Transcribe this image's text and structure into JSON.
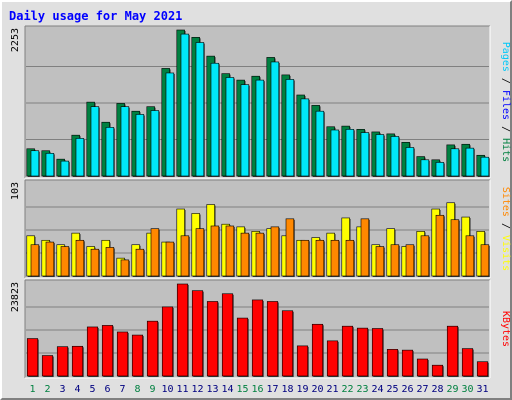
{
  "chart_data": {
    "title": "Daily usage for May 2021",
    "days": [
      "1",
      "2",
      "3",
      "4",
      "5",
      "6",
      "7",
      "8",
      "9",
      "10",
      "11",
      "12",
      "13",
      "14",
      "15",
      "16",
      "17",
      "18",
      "19",
      "20",
      "21",
      "22",
      "23",
      "24",
      "25",
      "26",
      "27",
      "28",
      "29",
      "30",
      "31"
    ],
    "weekend_days": [
      "1",
      "2",
      "8",
      "9",
      "15",
      "16",
      "22",
      "23",
      "29",
      "30"
    ],
    "colors": {
      "hits": "#008040",
      "files": "#00c8f8",
      "pages": "#00e8f8",
      "visits": "#ffff00",
      "sites": "#ff8800",
      "kbytes": "#ff0000",
      "weekday_label": "#000080",
      "weekend_label": "#008040",
      "title": "#0000ff",
      "panel_bg": "#c0c0c0"
    },
    "panels": [
      {
        "type": "bar",
        "max_label": "2253",
        "ylim": [
          0,
          2253
        ],
        "legend": [
          {
            "text": "Pages",
            "color": "#00c8f8"
          },
          {
            "text": " / ",
            "color": "#000000"
          },
          {
            "text": "Files",
            "color": "#0000ff"
          },
          {
            "text": " / ",
            "color": "#000000"
          },
          {
            "text": "Hits",
            "color": "#008040"
          }
        ],
        "series": [
          {
            "name": "Hits",
            "color": "#008040",
            "values": [
              420,
              390,
              260,
              630,
              1140,
              830,
              1120,
              1000,
              1070,
              1660,
              2253,
              2140,
              1850,
              1580,
              1480,
              1540,
              1830,
              1560,
              1250,
              1090,
              760,
              770,
              720,
              680,
              650,
              520,
              300,
              250,
              480,
              490,
              320
            ]
          },
          {
            "name": "Files",
            "color": "#00e8f8",
            "values": [
              390,
              350,
              230,
              580,
              1070,
              750,
              1070,
              950,
              1010,
              1590,
              2190,
              2060,
              1740,
              1520,
              1410,
              1480,
              1760,
              1490,
              1190,
              1000,
              710,
              720,
              670,
              640,
              610,
              440,
              250,
              210,
              420,
              430,
              290
            ]
          }
        ]
      },
      {
        "type": "bar",
        "max_label": "103",
        "ylim": [
          0,
          103
        ],
        "legend": [
          {
            "text": "Sites",
            "color": "#ff8800"
          },
          {
            "text": " / ",
            "color": "#000000"
          },
          {
            "text": "Visits",
            "color": "#ffff00"
          }
        ],
        "series": [
          {
            "name": "Visits",
            "color": "#ffff00",
            "values": [
              45,
              40,
              35,
              48,
              33,
              40,
              20,
              35,
              48,
              38,
              75,
              70,
              80,
              58,
              55,
              50,
              53,
              45,
              40,
              43,
              48,
              65,
              55,
              35,
              53,
              33,
              50,
              75,
              82,
              66,
              50
            ]
          },
          {
            "name": "Sites",
            "color": "#ff8800",
            "values": [
              35,
              38,
              33,
              40,
              30,
              32,
              18,
              30,
              53,
              38,
              45,
              53,
              56,
              56,
              48,
              48,
              55,
              64,
              40,
              40,
              40,
              40,
              64,
              33,
              35,
              35,
              45,
              68,
              63,
              45,
              35
            ]
          }
        ]
      },
      {
        "type": "bar",
        "max_label": "23823",
        "ylim": [
          0,
          23823
        ],
        "legend": [
          {
            "text": "KBytes",
            "color": "#ff0000"
          }
        ],
        "series": [
          {
            "name": "KBytes",
            "color": "#ff0000",
            "values": [
              9700,
              5300,
              7600,
              7700,
              12700,
              13100,
              11400,
              10600,
              14200,
              17900,
              23823,
              22100,
              19300,
              21300,
              15000,
              19700,
              19300,
              16900,
              7800,
              13400,
              9100,
              12900,
              12400,
              12300,
              6900,
              6700,
              4400,
              2800,
              12900,
              7100,
              3700
            ]
          }
        ]
      }
    ]
  }
}
